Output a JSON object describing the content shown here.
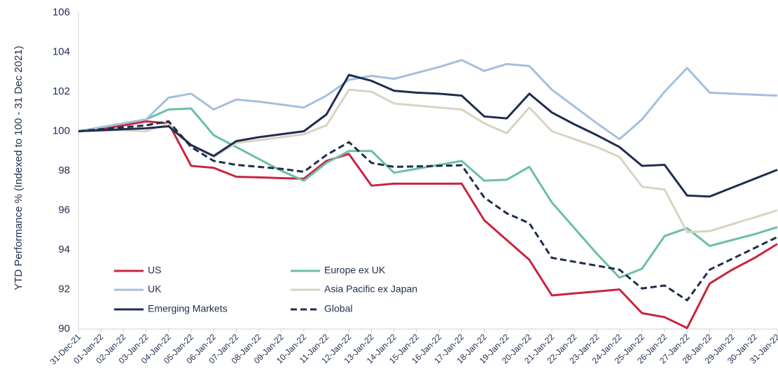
{
  "chart_data": {
    "type": "line",
    "y_label": "YTD Performance % (Indexed to 100 - 31 Dec 2021)",
    "categories": [
      "31-Dec-21",
      "01-Jan-22",
      "02-Jan-22",
      "03-Jan-22",
      "04-Jan-22",
      "05-Jan-22",
      "06-Jan-22",
      "07-Jan-22",
      "08-Jan-22",
      "09-Jan-22",
      "10-Jan-22",
      "11-Jan-22",
      "12-Jan-22",
      "13-Jan-22",
      "14-Jan-22",
      "15-Jan-22",
      "16-Jan-22",
      "17-Jan-22",
      "18-Jan-22",
      "19-Jan-22",
      "20-Jan-22",
      "21-Jan-22",
      "22-Jan-22",
      "23-Jan-22",
      "24-Jan-22",
      "25-Jan-22",
      "26-Jan-22",
      "27-Jan-22",
      "28-Jan-22",
      "29-Jan-22",
      "30-Jan-22",
      "31-Jan-22"
    ],
    "series": [
      {
        "name": "US",
        "color": "#c9243f",
        "values": [
          100,
          100.1,
          100.3,
          100.5,
          100.4,
          98.25,
          98.15,
          97.7,
          97.67,
          97.63,
          97.6,
          98.5,
          98.85,
          97.25,
          97.35,
          97.35,
          97.35,
          97.35,
          95.5,
          94.5,
          93.5,
          91.7,
          91.8,
          91.9,
          92.0,
          90.8,
          90.6,
          90.05,
          92.3,
          93.0,
          93.6,
          94.3
        ]
      },
      {
        "name": "Europe ex UK",
        "color": "#6bbfa5",
        "values": [
          100,
          100.2,
          100.4,
          100.6,
          101.1,
          101.15,
          99.8,
          99.2,
          98.6,
          98.0,
          97.5,
          98.4,
          99.0,
          99.0,
          97.9,
          98.1,
          98.3,
          98.5,
          97.5,
          97.55,
          98.2,
          96.4,
          95.1,
          93.8,
          92.6,
          93.05,
          94.7,
          95.1,
          94.2,
          94.5,
          94.8,
          95.15
        ]
      },
      {
        "name": "UK",
        "color": "#a5bfdc",
        "values": [
          100,
          100.2,
          100.4,
          100.6,
          101.7,
          101.9,
          101.1,
          101.6,
          101.5,
          101.35,
          101.2,
          101.8,
          102.6,
          102.8,
          102.65,
          102.95,
          103.25,
          103.6,
          103.05,
          103.4,
          103.3,
          102.1,
          101.25,
          100.4,
          99.6,
          100.6,
          102.0,
          103.2,
          101.95,
          101.9,
          101.85,
          101.8
        ]
      },
      {
        "name": "Asia Pacific ex Japan",
        "color": "#d9d3c4",
        "values": [
          100,
          100.05,
          100.05,
          100.0,
          100.4,
          99.3,
          98.7,
          99.4,
          99.55,
          99.7,
          99.85,
          100.3,
          102.1,
          102.0,
          101.4,
          101.3,
          101.2,
          101.1,
          100.4,
          99.9,
          101.2,
          100.0,
          99.6,
          99.2,
          98.7,
          97.2,
          97.05,
          94.9,
          94.95,
          95.3,
          95.65,
          96.0
        ]
      },
      {
        "name": "Emerging Markets",
        "color": "#1f2d4e",
        "values": [
          100,
          100.05,
          100.1,
          100.15,
          100.25,
          99.3,
          98.75,
          99.5,
          99.7,
          99.85,
          100.0,
          100.85,
          102.85,
          102.55,
          102.05,
          101.95,
          101.9,
          101.8,
          100.75,
          100.65,
          101.9,
          100.95,
          100.35,
          99.8,
          99.2,
          98.25,
          98.3,
          96.75,
          96.7,
          97.15,
          97.6,
          98.05
        ]
      },
      {
        "name": "Global",
        "color": "#1f2d4e",
        "dashed": true,
        "values": [
          100,
          100.1,
          100.2,
          100.3,
          100.5,
          99.2,
          98.5,
          98.3,
          98.2,
          98.1,
          97.95,
          98.8,
          99.45,
          98.4,
          98.2,
          98.22,
          98.25,
          98.28,
          96.65,
          95.85,
          95.35,
          93.6,
          93.4,
          93.2,
          93.0,
          92.05,
          92.2,
          91.45,
          93.0,
          93.55,
          94.1,
          94.65
        ]
      }
    ],
    "ylim": [
      90,
      106
    ],
    "yticks": [
      90,
      92,
      94,
      96,
      98,
      100,
      102,
      104,
      106
    ],
    "grid": false,
    "legend": "lower left"
  }
}
